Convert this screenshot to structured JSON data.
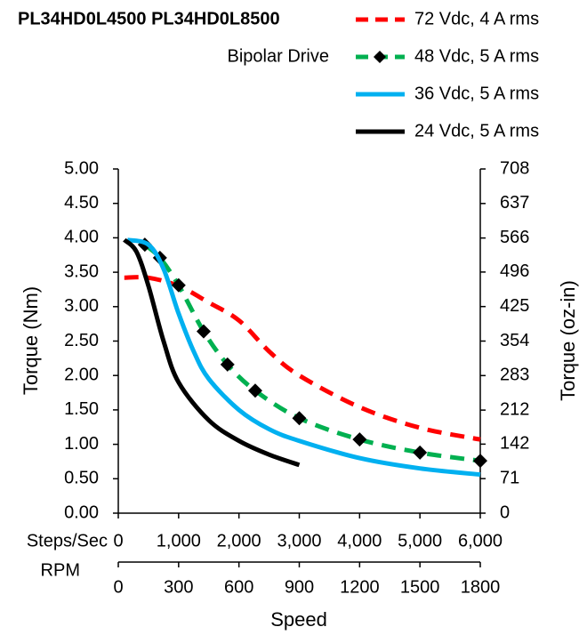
{
  "chart_data": {
    "type": "line",
    "title": "PL34HD0L4500  PL34HD0L8500",
    "subtitle": "Bipolar Drive",
    "ylabel": "Torque (Nm)",
    "y2label": "Torque (oz-in)",
    "xlabel": "Speed",
    "x_axis_name": "Steps/Sec",
    "x2_axis_name": "RPM",
    "xlim": [
      0,
      6000
    ],
    "xticks": [
      0,
      {
        "value": 1000,
        "label": "1,000"
      },
      {
        "value": 2000,
        "label": "2,000"
      },
      {
        "value": 3000,
        "label": "3,000"
      },
      {
        "value": 4000,
        "label": "4,000"
      },
      {
        "value": 5000,
        "label": "5,000"
      },
      {
        "value": 6000,
        "label": "6,000"
      }
    ],
    "x2lim": [
      0,
      1800
    ],
    "x2ticks": [
      0,
      300,
      600,
      900,
      1200,
      1500,
      1800
    ],
    "ylim": [
      0,
      5
    ],
    "yticks": [
      {
        "value": 0,
        "label": "0.00"
      },
      {
        "value": 0.5,
        "label": "0.50"
      },
      {
        "value": 1,
        "label": "1.00"
      },
      {
        "value": 1.5,
        "label": "1.50"
      },
      {
        "value": 2,
        "label": "2.00"
      },
      {
        "value": 2.5,
        "label": "2.50"
      },
      {
        "value": 3,
        "label": "3.00"
      },
      {
        "value": 3.5,
        "label": "3.50"
      },
      {
        "value": 4,
        "label": "4.00"
      },
      {
        "value": 4.5,
        "label": "4.50"
      },
      {
        "value": 5,
        "label": "5.00"
      }
    ],
    "y2lim": [
      0,
      708
    ],
    "y2ticks": [
      0,
      71,
      142,
      212,
      283,
      354,
      425,
      496,
      566,
      637,
      708
    ],
    "series": [
      {
        "name": "72 Vdc, 4 A rms",
        "color": "#ff0000",
        "dash": true,
        "markers": false,
        "x": [
          100,
          500,
          1000,
          1500,
          2000,
          2500,
          3000,
          4000,
          5000,
          6000
        ],
        "values": [
          3.42,
          3.42,
          3.3,
          3.06,
          2.8,
          2.35,
          2.0,
          1.54,
          1.24,
          1.07
        ]
      },
      {
        "name": "48 Vdc, 5 A rms",
        "color": "#00b050",
        "dash": true,
        "markers": true,
        "x": [
          440,
          690,
          1000,
          1415,
          1810,
          2270,
          3000,
          4000,
          5000,
          6000
        ],
        "values": [
          3.9,
          3.71,
          3.31,
          2.64,
          2.16,
          1.78,
          1.38,
          1.07,
          0.88,
          0.76
        ]
      },
      {
        "name": "36 Vdc, 5 A rms",
        "color": "#00b0f0",
        "dash": false,
        "markers": false,
        "x": [
          150,
          500,
          750,
          1000,
          1250,
          1500,
          2000,
          2500,
          3000,
          4000,
          5000,
          6000
        ],
        "values": [
          3.97,
          3.9,
          3.55,
          2.9,
          2.35,
          1.95,
          1.5,
          1.22,
          1.05,
          0.8,
          0.65,
          0.56
        ]
      },
      {
        "name": "24 Vdc, 5 A rms",
        "color": "#000000",
        "dash": false,
        "markers": false,
        "x": [
          100,
          300,
          500,
          750,
          1000,
          1500,
          2000,
          2500,
          3000
        ],
        "values": [
          3.97,
          3.8,
          3.3,
          2.5,
          1.9,
          1.35,
          1.05,
          0.85,
          0.7
        ]
      }
    ]
  }
}
